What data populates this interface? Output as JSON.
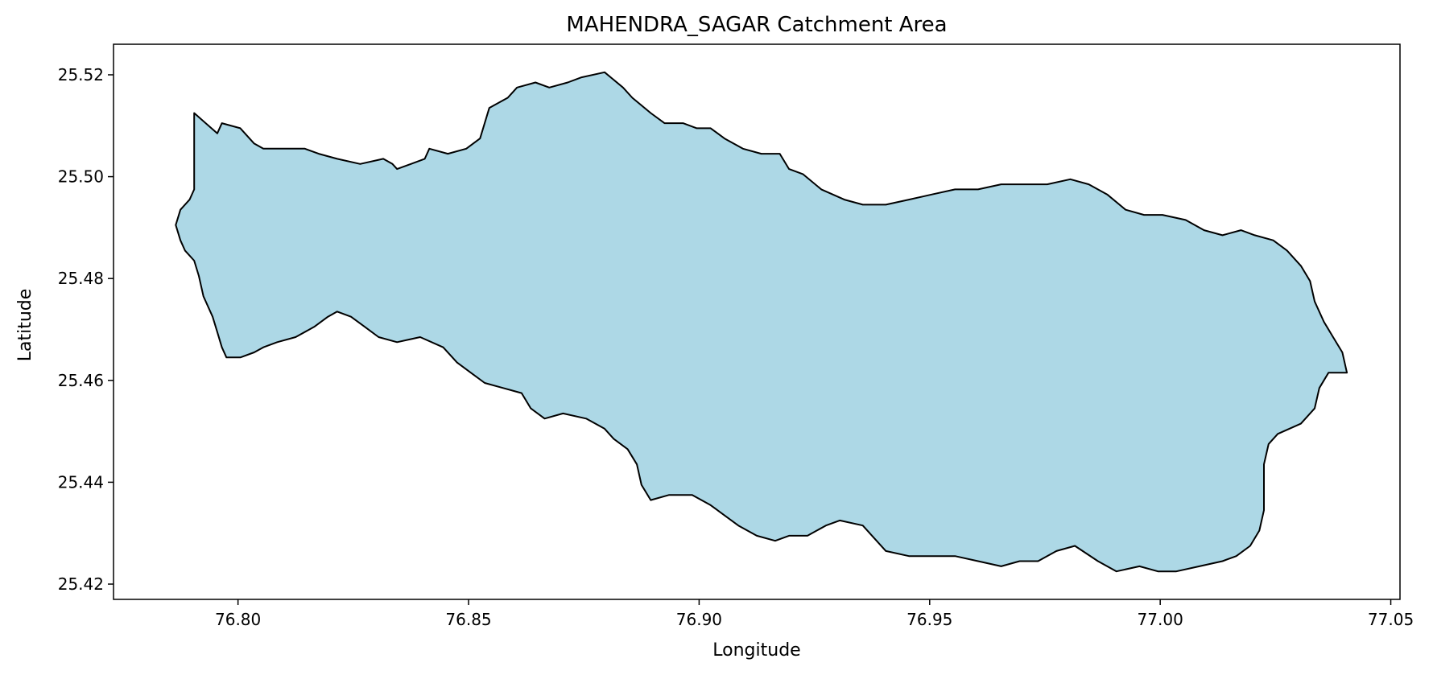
{
  "chart_data": {
    "type": "map",
    "title": "MAHENDRA_SAGAR Catchment Area",
    "xlabel": "Longitude",
    "ylabel": "Latitude",
    "xlim": [
      76.773,
      77.052
    ],
    "ylim": [
      25.417,
      25.526
    ],
    "xticks": [
      76.8,
      76.85,
      76.9,
      76.95,
      77.0,
      77.05
    ],
    "xtick_labels": [
      "76.80",
      "76.85",
      "76.90",
      "76.95",
      "77.00",
      "77.05"
    ],
    "yticks": [
      25.42,
      25.44,
      25.46,
      25.48,
      25.5,
      25.52
    ],
    "ytick_labels": [
      "25.42",
      "25.44",
      "25.46",
      "25.48",
      "25.50",
      "25.52"
    ],
    "grid": false,
    "fill_color": "#add8e6",
    "edge_color": "#000000",
    "boundary": [
      [
        76.7905,
        25.5125
      ],
      [
        76.7955,
        25.5085
      ],
      [
        76.7965,
        25.5105
      ],
      [
        76.8005,
        25.5095
      ],
      [
        76.8035,
        25.5065
      ],
      [
        76.8055,
        25.5055
      ],
      [
        76.8105,
        25.5055
      ],
      [
        76.8145,
        25.5055
      ],
      [
        76.8175,
        25.5045
      ],
      [
        76.8215,
        25.5035
      ],
      [
        76.8265,
        25.5025
      ],
      [
        76.8315,
        25.5035
      ],
      [
        76.8335,
        25.5025
      ],
      [
        76.8345,
        25.5015
      ],
      [
        76.8375,
        25.5025
      ],
      [
        76.8405,
        25.5035
      ],
      [
        76.8415,
        25.5055
      ],
      [
        76.8455,
        25.5045
      ],
      [
        76.8495,
        25.5055
      ],
      [
        76.8525,
        25.5075
      ],
      [
        76.8545,
        25.5135
      ],
      [
        76.8585,
        25.5155
      ],
      [
        76.8605,
        25.5175
      ],
      [
        76.8645,
        25.5185
      ],
      [
        76.8675,
        25.5175
      ],
      [
        76.8715,
        25.5185
      ],
      [
        76.8745,
        25.5195
      ],
      [
        76.8795,
        25.5205
      ],
      [
        76.8835,
        25.5175
      ],
      [
        76.8855,
        25.5155
      ],
      [
        76.8895,
        25.5125
      ],
      [
        76.8925,
        25.5105
      ],
      [
        76.8965,
        25.5105
      ],
      [
        76.8995,
        25.5095
      ],
      [
        76.9025,
        25.5095
      ],
      [
        76.9055,
        25.5075
      ],
      [
        76.9095,
        25.5055
      ],
      [
        76.9135,
        25.5045
      ],
      [
        76.9175,
        25.5045
      ],
      [
        76.9195,
        25.5015
      ],
      [
        76.9225,
        25.5005
      ],
      [
        76.9265,
        25.4975
      ],
      [
        76.9315,
        25.4955
      ],
      [
        76.9355,
        25.4945
      ],
      [
        76.9405,
        25.4945
      ],
      [
        76.9455,
        25.4955
      ],
      [
        76.9505,
        25.4965
      ],
      [
        76.9555,
        25.4975
      ],
      [
        76.9605,
        25.4975
      ],
      [
        76.9655,
        25.4985
      ],
      [
        76.9705,
        25.4985
      ],
      [
        76.9755,
        25.4985
      ],
      [
        76.9805,
        25.4995
      ],
      [
        76.9845,
        25.4985
      ],
      [
        76.9885,
        25.4965
      ],
      [
        76.9925,
        25.4935
      ],
      [
        76.9965,
        25.4925
      ],
      [
        77.0005,
        25.4925
      ],
      [
        77.0055,
        25.4915
      ],
      [
        77.0095,
        25.4895
      ],
      [
        77.0135,
        25.4885
      ],
      [
        77.0175,
        25.4895
      ],
      [
        77.0205,
        25.4885
      ],
      [
        77.0245,
        25.4875
      ],
      [
        77.0275,
        25.4855
      ],
      [
        77.0305,
        25.4825
      ],
      [
        77.0325,
        25.4795
      ],
      [
        77.0335,
        25.4755
      ],
      [
        77.0355,
        25.4715
      ],
      [
        77.0375,
        25.4685
      ],
      [
        77.0395,
        25.4655
      ],
      [
        77.0405,
        25.4615
      ],
      [
        77.0365,
        25.4615
      ],
      [
        77.0345,
        25.4585
      ],
      [
        77.0335,
        25.4545
      ],
      [
        77.0305,
        25.4515
      ],
      [
        77.0255,
        25.4495
      ],
      [
        77.0235,
        25.4475
      ],
      [
        77.0225,
        25.4435
      ],
      [
        77.0225,
        25.4395
      ],
      [
        77.0225,
        25.4345
      ],
      [
        77.0215,
        25.4305
      ],
      [
        77.0195,
        25.4275
      ],
      [
        77.0165,
        25.4255
      ],
      [
        77.0135,
        25.4245
      ],
      [
        77.0085,
        25.4235
      ],
      [
        77.0035,
        25.4225
      ],
      [
        76.9995,
        25.4225
      ],
      [
        76.9955,
        25.4235
      ],
      [
        76.9905,
        25.4225
      ],
      [
        76.9865,
        25.4245
      ],
      [
        76.9815,
        25.4275
      ],
      [
        76.9775,
        25.4265
      ],
      [
        76.9735,
        25.4245
      ],
      [
        76.9695,
        25.4245
      ],
      [
        76.9655,
        25.4235
      ],
      [
        76.9605,
        25.4245
      ],
      [
        76.9555,
        25.4255
      ],
      [
        76.9505,
        25.4255
      ],
      [
        76.9455,
        25.4255
      ],
      [
        76.9405,
        25.4265
      ],
      [
        76.9375,
        25.4295
      ],
      [
        76.9355,
        25.4315
      ],
      [
        76.9305,
        25.4325
      ],
      [
        76.9275,
        25.4315
      ],
      [
        76.9235,
        25.4295
      ],
      [
        76.9195,
        25.4295
      ],
      [
        76.9165,
        25.4285
      ],
      [
        76.9125,
        25.4295
      ],
      [
        76.9085,
        25.4315
      ],
      [
        76.9055,
        25.4335
      ],
      [
        76.9025,
        25.4355
      ],
      [
        76.8985,
        25.4375
      ],
      [
        76.8935,
        25.4375
      ],
      [
        76.8895,
        25.4365
      ],
      [
        76.8875,
        25.4395
      ],
      [
        76.8865,
        25.4435
      ],
      [
        76.8845,
        25.4465
      ],
      [
        76.8815,
        25.4485
      ],
      [
        76.8795,
        25.4505
      ],
      [
        76.8755,
        25.4525
      ],
      [
        76.8705,
        25.4535
      ],
      [
        76.8665,
        25.4525
      ],
      [
        76.8635,
        25.4545
      ],
      [
        76.8615,
        25.4575
      ],
      [
        76.8575,
        25.4585
      ],
      [
        76.8535,
        25.4595
      ],
      [
        76.8505,
        25.4615
      ],
      [
        76.8475,
        25.4635
      ],
      [
        76.8445,
        25.4665
      ],
      [
        76.8395,
        25.4685
      ],
      [
        76.8345,
        25.4675
      ],
      [
        76.8305,
        25.4685
      ],
      [
        76.8275,
        25.4705
      ],
      [
        76.8245,
        25.4725
      ],
      [
        76.8215,
        25.4735
      ],
      [
        76.8195,
        25.4725
      ],
      [
        76.8165,
        25.4705
      ],
      [
        76.8125,
        25.4685
      ],
      [
        76.8085,
        25.4675
      ],
      [
        76.8055,
        25.4665
      ],
      [
        76.8035,
        25.4655
      ],
      [
        76.8005,
        25.4645
      ],
      [
        76.7975,
        25.4645
      ],
      [
        76.7965,
        25.4665
      ],
      [
        76.7955,
        25.4695
      ],
      [
        76.7945,
        25.4725
      ],
      [
        76.7925,
        25.4765
      ],
      [
        76.7915,
        25.4805
      ],
      [
        76.7905,
        25.4835
      ],
      [
        76.7885,
        25.4855
      ],
      [
        76.7875,
        25.4875
      ],
      [
        76.7865,
        25.4905
      ],
      [
        76.7875,
        25.4935
      ],
      [
        76.7895,
        25.4955
      ],
      [
        76.7905,
        25.4975
      ]
    ]
  }
}
